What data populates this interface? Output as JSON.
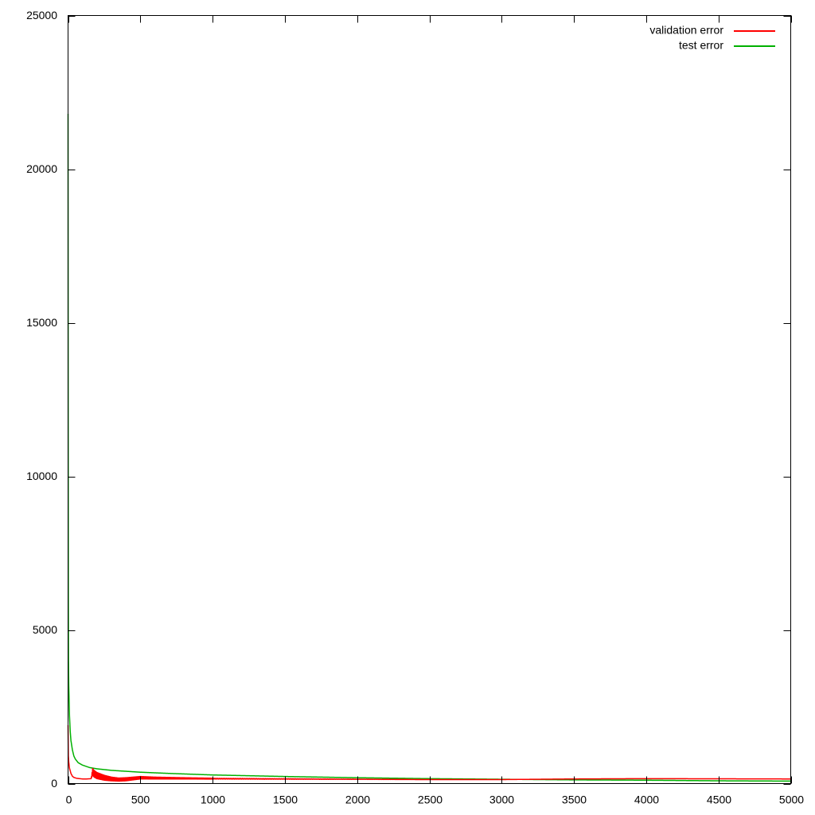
{
  "chart_data": {
    "type": "line",
    "title": "",
    "xlabel": "",
    "ylabel": "",
    "xlim": [
      0,
      5000
    ],
    "ylim": [
      0,
      25000
    ],
    "x_ticks": [
      "0",
      "500",
      "1000",
      "1500",
      "2000",
      "2500",
      "3000",
      "3500",
      "4000",
      "4500",
      "5000"
    ],
    "y_ticks": [
      "0",
      "5000",
      "10000",
      "15000",
      "20000",
      "25000"
    ],
    "grid": false,
    "legend_position": "top-right",
    "series": [
      {
        "name": "validation error",
        "color": "#ff0000",
        "x": [
          0,
          2,
          5,
          10,
          20,
          30,
          40,
          60,
          80,
          100,
          130,
          160,
          170,
          180,
          200,
          250,
          300,
          350,
          400,
          500,
          600,
          800,
          1000,
          1500,
          2000,
          2500,
          3000,
          3500,
          4000,
          4500,
          5000
        ],
        "y": [
          1900,
          900,
          700,
          500,
          330,
          240,
          200,
          170,
          160,
          150,
          150,
          160,
          380,
          320,
          260,
          190,
          150,
          130,
          140,
          190,
          180,
          170,
          160,
          150,
          140,
          130,
          130,
          150,
          160,
          155,
          150
        ],
        "noise": [
          0,
          0,
          0,
          0,
          0,
          0,
          0,
          0,
          0,
          0,
          0,
          0,
          110,
          110,
          100,
          80,
          60,
          50,
          50,
          40,
          30,
          20,
          15,
          10,
          5,
          0,
          0,
          0,
          0,
          0,
          0
        ]
      },
      {
        "name": "test error",
        "color": "#00b000",
        "x": [
          0,
          1,
          2,
          3,
          5,
          8,
          10,
          15,
          20,
          30,
          40,
          50,
          70,
          100,
          150,
          200,
          300,
          500,
          700,
          1000,
          1500,
          2000,
          2500,
          3000,
          3500,
          4000,
          4500,
          5000
        ],
        "y": [
          21800,
          12000,
          6000,
          4000,
          3200,
          2600,
          2200,
          1700,
          1400,
          1100,
          900,
          800,
          680,
          600,
          520,
          480,
          430,
          370,
          330,
          280,
          230,
          190,
          160,
          140,
          120,
          110,
          90,
          80
        ],
        "noise": []
      }
    ]
  }
}
